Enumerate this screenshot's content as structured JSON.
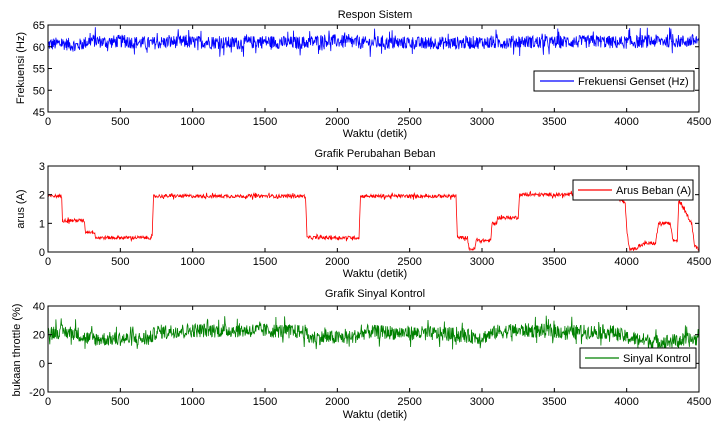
{
  "chart_data": [
    {
      "type": "line",
      "title": "Respon Sistem",
      "xlabel": "Waktu (detik)",
      "ylabel": "Frekuensi (Hz)",
      "xlim": [
        0,
        4500
      ],
      "ylim": [
        45,
        65
      ],
      "xticks": [
        "0",
        "500",
        "1000",
        "1500",
        "2000",
        "2500",
        "3000",
        "3500",
        "4000",
        "4500"
      ],
      "yticks": [
        "45",
        "50",
        "55",
        "60",
        "65"
      ],
      "legend_position": "right",
      "series": [
        {
          "name": "Frekuensi Genset (Hz)",
          "color": "#0000ff",
          "x": [
            0,
            100,
            200,
            300,
            400,
            500,
            600,
            700,
            800,
            900,
            1000,
            1100,
            1200,
            1300,
            1400,
            1500,
            1600,
            1700,
            1800,
            1900,
            2000,
            2100,
            2200,
            2300,
            2400,
            2500,
            2600,
            2700,
            2800,
            2900,
            3000,
            3100,
            3200,
            3300,
            3400,
            3500,
            3600,
            3700,
            3800,
            3900,
            4000,
            4100,
            4200,
            4300,
            4400,
            4500
          ],
          "y": [
            60.5,
            60.8,
            60.2,
            61.5,
            61,
            61.3,
            61,
            60.8,
            61,
            61.2,
            61,
            61.1,
            60.9,
            60.8,
            61,
            61.2,
            61,
            60.9,
            61,
            61.5,
            61.3,
            61,
            60.9,
            61,
            60.8,
            61,
            60.7,
            60.9,
            60.8,
            61,
            61,
            60.9,
            61.1,
            61.2,
            61,
            61,
            61.2,
            61.1,
            61.3,
            61,
            61,
            61.2,
            61.3,
            61.4,
            61.2,
            61.5
          ],
          "noise_amplitude": 1.5
        }
      ]
    },
    {
      "type": "line",
      "title": "Grafik Perubahan Beban",
      "xlabel": "Waktu (detik)",
      "ylabel": "arus (A)",
      "xlim": [
        0,
        4500
      ],
      "ylim": [
        0,
        3
      ],
      "xticks": [
        "0",
        "500",
        "1000",
        "1500",
        "2000",
        "2500",
        "3000",
        "3500",
        "4000",
        "4500"
      ],
      "yticks": [
        "0",
        "1",
        "2",
        "3"
      ],
      "legend_position": "top-right",
      "series": [
        {
          "name": "Arus Beban (A)",
          "color": "#ff0000",
          "x": [
            0,
            95,
            100,
            250,
            260,
            320,
            330,
            720,
            730,
            1780,
            1790,
            2150,
            2160,
            2820,
            2830,
            2900,
            2910,
            2950,
            2960,
            3060,
            3070,
            3100,
            3110,
            3250,
            3260,
            3900,
            3990,
            4000,
            4020,
            4050,
            4130,
            4200,
            4220,
            4300,
            4320,
            4350,
            4360,
            4450,
            4470,
            4500
          ],
          "y": [
            1.95,
            1.95,
            1.1,
            1.1,
            0.7,
            0.7,
            0.5,
            0.5,
            1.95,
            1.95,
            0.5,
            0.5,
            1.95,
            1.95,
            0.5,
            0.5,
            0.1,
            0.1,
            0.4,
            0.4,
            1.0,
            1.0,
            1.2,
            1.2,
            2.0,
            2.0,
            1.7,
            0.8,
            0.1,
            0.1,
            0.3,
            0.3,
            1.0,
            1.0,
            0.4,
            0.4,
            1.8,
            1.0,
            0.2,
            0.1
          ],
          "noise_amplitude": 0.06
        }
      ]
    },
    {
      "type": "line",
      "title": "Grafik Sinyal Kontrol",
      "xlabel": "Waktu (detik)",
      "ylabel": "bukaan throttle (%)",
      "xlim": [
        0,
        4500
      ],
      "ylim": [
        -20,
        40
      ],
      "xticks": [
        "0",
        "500",
        "1000",
        "1500",
        "2000",
        "2500",
        "3000",
        "3500",
        "4000",
        "4500"
      ],
      "yticks": [
        "-20",
        "0",
        "20",
        "40"
      ],
      "legend_position": "bottom-right",
      "series": [
        {
          "name": "Sinyal Kontrol",
          "color": "#008000",
          "x": [
            0,
            100,
            200,
            250,
            300,
            400,
            500,
            700,
            750,
            1000,
            1500,
            1780,
            1800,
            2100,
            2200,
            2600,
            2800,
            2900,
            3000,
            3100,
            3300,
            3600,
            3900,
            4000,
            4200,
            4400,
            4500
          ],
          "y": [
            22,
            22,
            21,
            18,
            17,
            17,
            17,
            17,
            22,
            23,
            23,
            22,
            18,
            18,
            22,
            21,
            20,
            19,
            18,
            22,
            23,
            22,
            22,
            18,
            15,
            16,
            17
          ],
          "noise_amplitude": 5
        }
      ]
    }
  ]
}
